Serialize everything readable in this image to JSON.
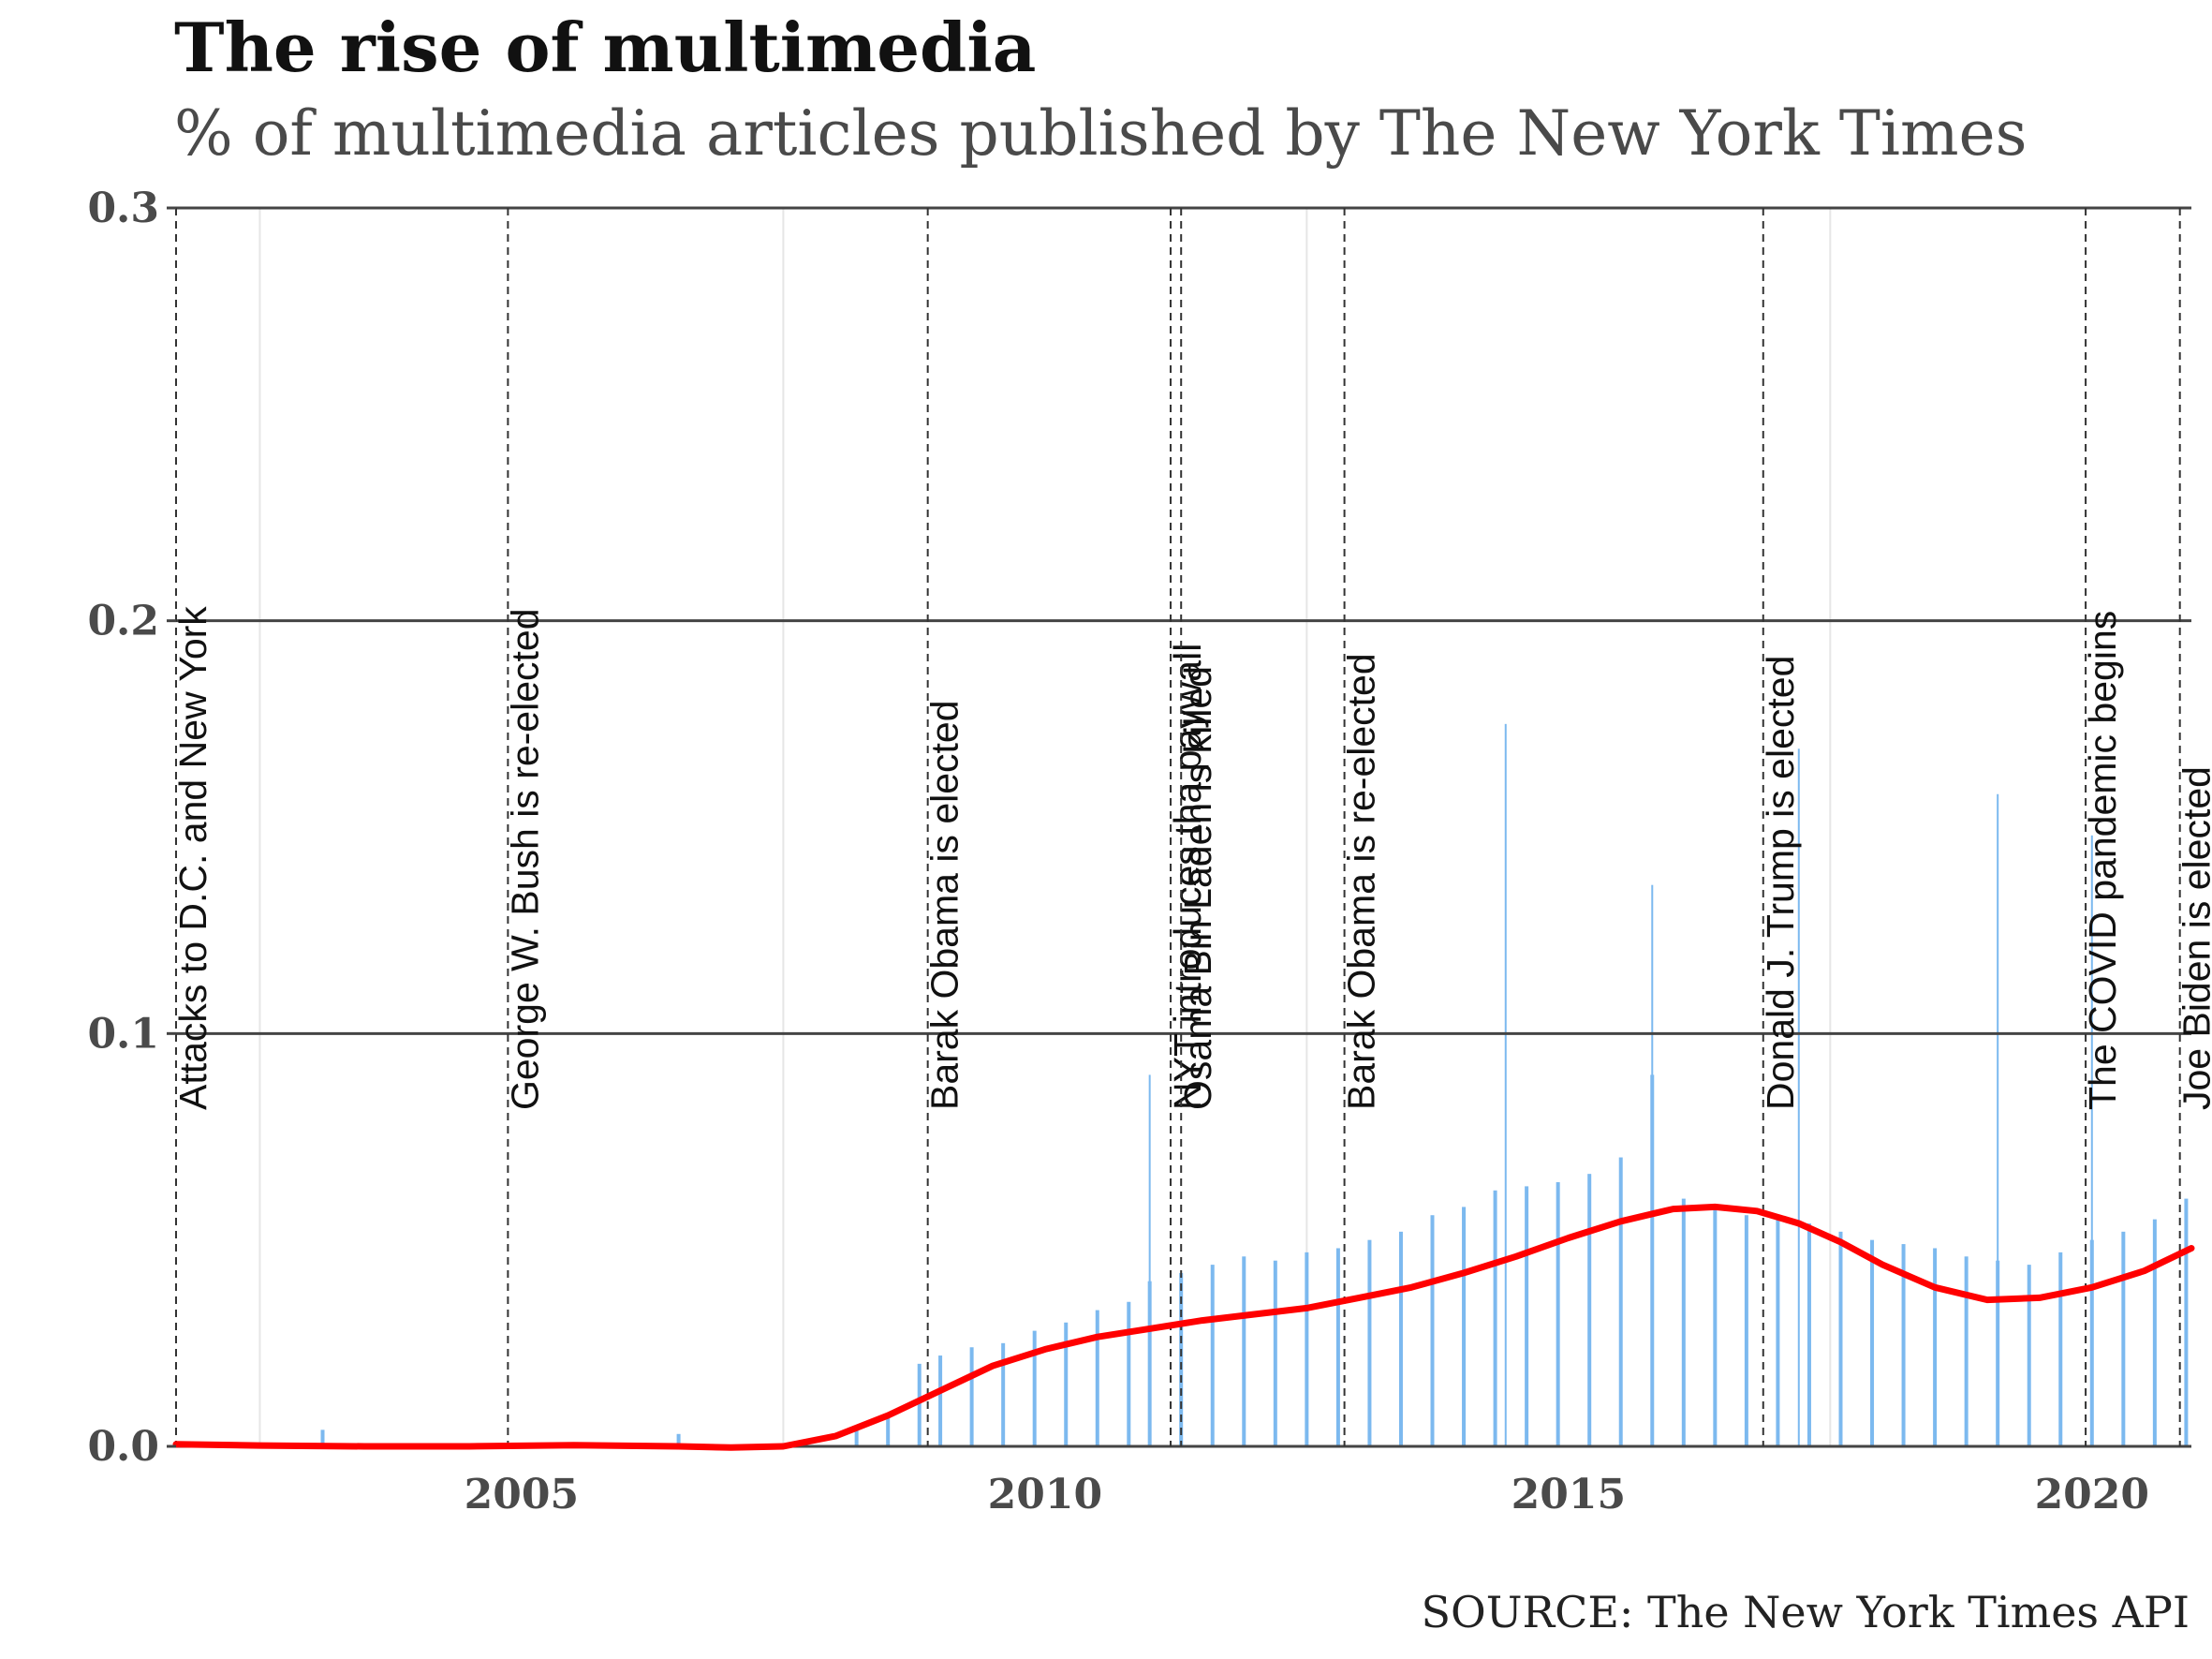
{
  "chart_data": {
    "type": "bar",
    "title": "The rise of multimedia",
    "subtitle": "% of multimedia articles published by The New York Times",
    "source": "SOURCE: The New York Times API",
    "xlabel": "",
    "ylabel": "",
    "xlim": [
      2001.7,
      2020.95
    ],
    "ylim": [
      0,
      0.3
    ],
    "y_ticks": [
      {
        "value": 0.0,
        "label": "0.0"
      },
      {
        "value": 0.1,
        "label": "0.1"
      },
      {
        "value": 0.2,
        "label": "0.2"
      },
      {
        "value": 0.3,
        "label": "0.3"
      }
    ],
    "x_ticks": [
      {
        "value": 2005,
        "label": "2005"
      },
      {
        "value": 2010,
        "label": "2010"
      },
      {
        "value": 2015,
        "label": "2015"
      },
      {
        "value": 2020,
        "label": "2020"
      }
    ],
    "grid": "horizontal",
    "colors": {
      "bars": "#7cb9ef",
      "trend": "#ff0000",
      "gridline": "#444444",
      "event_line": "#333333"
    },
    "series": [
      {
        "kind": "bars",
        "frequency": "daily",
        "description_of_values": "share of multimedia articles per day",
        "x": [
          2003.1,
          2006.5,
          2008.2,
          2008.5,
          2008.8,
          2009.0,
          2009.3,
          2009.6,
          2009.9,
          2010.2,
          2010.5,
          2010.8,
          2011.0,
          2011.3,
          2011.6,
          2011.9,
          2012.2,
          2012.5,
          2012.8,
          2013.1,
          2013.4,
          2013.7,
          2014.0,
          2014.3,
          2014.6,
          2014.9,
          2015.2,
          2015.5,
          2015.8,
          2016.1,
          2016.4,
          2016.7,
          2017.0,
          2017.3,
          2017.6,
          2017.9,
          2018.2,
          2018.5,
          2018.8,
          2019.1,
          2019.4,
          2019.7,
          2020.0,
          2020.3,
          2020.6,
          2020.9
        ],
        "values": [
          0.004,
          0.003,
          0.005,
          0.008,
          0.02,
          0.022,
          0.024,
          0.025,
          0.028,
          0.03,
          0.033,
          0.035,
          0.04,
          0.042,
          0.044,
          0.046,
          0.045,
          0.047,
          0.048,
          0.05,
          0.052,
          0.056,
          0.058,
          0.062,
          0.063,
          0.064,
          0.066,
          0.07,
          0.09,
          0.06,
          0.058,
          0.056,
          0.055,
          0.054,
          0.052,
          0.05,
          0.049,
          0.048,
          0.046,
          0.045,
          0.044,
          0.047,
          0.05,
          0.052,
          0.055,
          0.06
        ],
        "peaks": [
          {
            "x": 2011.0,
            "value": 0.09
          },
          {
            "x": 2014.4,
            "value": 0.175
          },
          {
            "x": 2015.8,
            "value": 0.136
          },
          {
            "x": 2017.2,
            "value": 0.169
          },
          {
            "x": 2019.1,
            "value": 0.158
          },
          {
            "x": 2020.0,
            "value": 0.148
          }
        ]
      },
      {
        "kind": "smooth",
        "x": [
          2001.7,
          2002.5,
          2003.5,
          2004.5,
          2005.5,
          2006.5,
          2007.0,
          2007.5,
          2008.0,
          2008.5,
          2009.0,
          2009.5,
          2010.0,
          2010.5,
          2011.0,
          2011.5,
          2012.0,
          2012.5,
          2013.0,
          2013.5,
          2014.0,
          2014.5,
          2015.0,
          2015.5,
          2016.0,
          2016.4,
          2016.8,
          2017.2,
          2017.6,
          2018.0,
          2018.5,
          2019.0,
          2019.5,
          2020.0,
          2020.5,
          2020.95
        ],
        "values": [
          0.0005,
          0.0002,
          0.0,
          0.0,
          0.0003,
          0.0,
          -0.0003,
          0.0,
          0.0025,
          0.0075,
          0.0135,
          0.0195,
          0.0235,
          0.0265,
          0.0285,
          0.0305,
          0.032,
          0.0335,
          0.036,
          0.0385,
          0.042,
          0.046,
          0.0505,
          0.0545,
          0.0575,
          0.058,
          0.057,
          0.054,
          0.0495,
          0.044,
          0.0385,
          0.0355,
          0.036,
          0.0385,
          0.0425,
          0.048
        ]
      }
    ],
    "events": [
      {
        "x": 2001.7,
        "label": "Attacks to D.C. and New York"
      },
      {
        "x": 2004.87,
        "label": "George W. Bush is re-elected"
      },
      {
        "x": 2008.88,
        "label": "Barak Obama is elected"
      },
      {
        "x": 2011.2,
        "label": "NYT introduces tha paywall"
      },
      {
        "x": 2011.3,
        "label": "Osama Bin Laden is killed"
      },
      {
        "x": 2012.86,
        "label": "Barak Obama is re-elected"
      },
      {
        "x": 2016.86,
        "label": "Donald J. Trump is elected"
      },
      {
        "x": 2019.94,
        "label": "The COVID pandemic begins"
      },
      {
        "x": 2020.84,
        "label": "Joe Biden is elected"
      }
    ]
  }
}
